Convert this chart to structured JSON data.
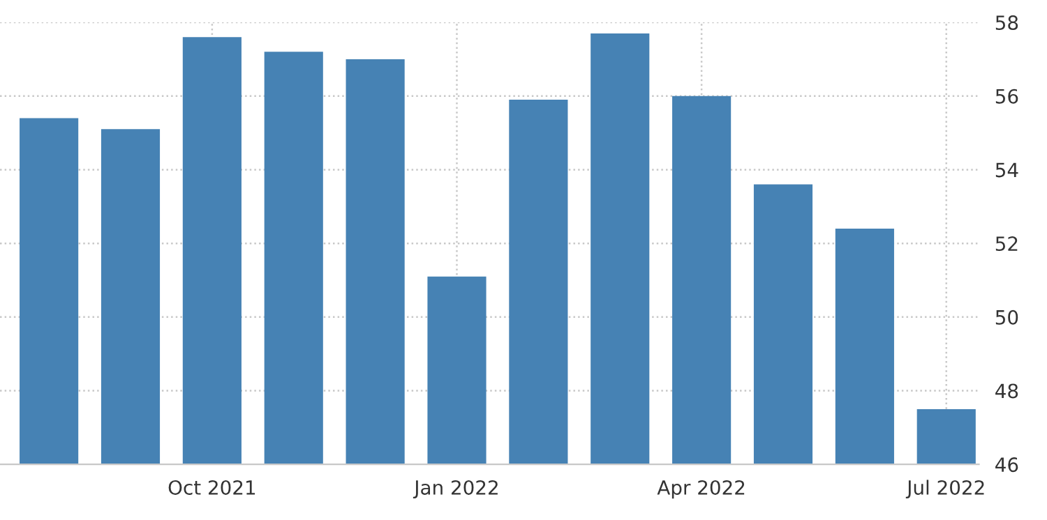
{
  "chart_data": {
    "type": "bar",
    "categories": [
      null,
      null,
      "Oct 2021",
      null,
      null,
      "Jan 2022",
      null,
      null,
      "Apr 2022",
      null,
      null,
      "Jul 2022"
    ],
    "values": [
      55.4,
      55.1,
      57.6,
      57.2,
      57.0,
      51.1,
      55.9,
      57.7,
      56.0,
      53.6,
      52.4,
      47.5
    ],
    "color": "#4682b4",
    "ylim": [
      46,
      58
    ],
    "yticks": [
      46,
      48,
      50,
      52,
      54,
      56,
      58
    ],
    "grid": true
  }
}
